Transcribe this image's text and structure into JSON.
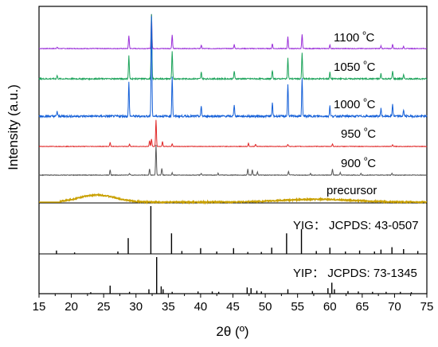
{
  "chart_data": {
    "type": "line",
    "title": "",
    "xlabel": "2θ (º)",
    "ylabel": "Intensity (a.u.)",
    "xlim": [
      15,
      75
    ],
    "xticks": [
      "15",
      "20",
      "25",
      "30",
      "35",
      "40",
      "45",
      "50",
      "55",
      "60",
      "65",
      "70",
      "75"
    ],
    "grid": false,
    "series": [
      {
        "name": "1100 ºC",
        "color": "#9b30d9",
        "peaks": [
          [
            17.8,
            0.05
          ],
          [
            28.9,
            0.38
          ],
          [
            32.4,
            1.0
          ],
          [
            35.6,
            0.4
          ],
          [
            40.1,
            0.1
          ],
          [
            45.2,
            0.12
          ],
          [
            51.1,
            0.14
          ],
          [
            53.5,
            0.34
          ],
          [
            55.7,
            0.42
          ],
          [
            60.0,
            0.1
          ],
          [
            67.9,
            0.08
          ],
          [
            69.7,
            0.12
          ],
          [
            71.4,
            0.06
          ]
        ]
      },
      {
        "name": "1050 ºC",
        "color": "#1ca35a",
        "peaks": [
          [
            17.8,
            0.05
          ],
          [
            28.9,
            0.36
          ],
          [
            32.4,
            1.0
          ],
          [
            35.6,
            0.42
          ],
          [
            40.1,
            0.1
          ],
          [
            45.2,
            0.12
          ],
          [
            51.1,
            0.13
          ],
          [
            53.5,
            0.32
          ],
          [
            55.7,
            0.4
          ],
          [
            60.0,
            0.1
          ],
          [
            67.9,
            0.08
          ],
          [
            69.7,
            0.12
          ],
          [
            71.4,
            0.06
          ]
        ]
      },
      {
        "name": "1000 ºC",
        "color": "#1560d8",
        "peaks": [
          [
            17.8,
            0.05
          ],
          [
            28.9,
            0.34
          ],
          [
            32.4,
            1.0
          ],
          [
            35.6,
            0.4
          ],
          [
            40.1,
            0.1
          ],
          [
            45.2,
            0.12
          ],
          [
            51.1,
            0.13
          ],
          [
            53.5,
            0.32
          ],
          [
            55.7,
            0.38
          ],
          [
            60.0,
            0.1
          ],
          [
            67.9,
            0.08
          ],
          [
            69.7,
            0.12
          ],
          [
            71.4,
            0.06
          ]
        ]
      },
      {
        "name": "950 ºC",
        "color": "#e02828",
        "peaks": [
          [
            26.0,
            0.15
          ],
          [
            29.0,
            0.08
          ],
          [
            32.1,
            0.22
          ],
          [
            32.4,
            0.28
          ],
          [
            33.1,
            1.0
          ],
          [
            34.1,
            0.18
          ],
          [
            35.6,
            0.1
          ],
          [
            47.4,
            0.12
          ],
          [
            48.5,
            0.08
          ],
          [
            53.5,
            0.08
          ],
          [
            60.4,
            0.1
          ],
          [
            69.7,
            0.06
          ]
        ]
      },
      {
        "name": "900 ºC",
        "color": "#555555",
        "peaks": [
          [
            26.0,
            0.18
          ],
          [
            29.0,
            0.06
          ],
          [
            32.1,
            0.2
          ],
          [
            33.1,
            1.0
          ],
          [
            34.0,
            0.22
          ],
          [
            35.6,
            0.08
          ],
          [
            40.1,
            0.05
          ],
          [
            42.7,
            0.06
          ],
          [
            47.3,
            0.2
          ],
          [
            48.0,
            0.18
          ],
          [
            48.8,
            0.1
          ],
          [
            53.6,
            0.12
          ],
          [
            57.0,
            0.06
          ],
          [
            60.4,
            0.2
          ],
          [
            61.6,
            0.08
          ],
          [
            64.8,
            0.06
          ],
          [
            69.6,
            0.06
          ]
        ]
      },
      {
        "name": "precursor",
        "color": "#c9a000",
        "type": "amorphous",
        "humps": [
          [
            24.0,
            4.0,
            0.9
          ],
          [
            58.0,
            8.0,
            0.35
          ]
        ]
      }
    ],
    "reference_patterns": [
      {
        "name": "YIG",
        "label": "YIG： JCPDS: 43-0507",
        "sticks": [
          [
            17.7,
            0.07
          ],
          [
            20.5,
            0.03
          ],
          [
            27.2,
            0.05
          ],
          [
            28.8,
            0.33
          ],
          [
            32.3,
            1.0
          ],
          [
            35.5,
            0.43
          ],
          [
            37.1,
            0.06
          ],
          [
            40.0,
            0.12
          ],
          [
            42.5,
            0.05
          ],
          [
            45.1,
            0.12
          ],
          [
            47.3,
            0.04
          ],
          [
            49.4,
            0.04
          ],
          [
            51.0,
            0.13
          ],
          [
            53.3,
            0.43
          ],
          [
            55.6,
            0.52
          ],
          [
            57.9,
            0.06
          ],
          [
            60.0,
            0.13
          ],
          [
            62.4,
            0.05
          ],
          [
            64.6,
            0.07
          ],
          [
            66.9,
            0.05
          ],
          [
            67.9,
            0.09
          ],
          [
            69.6,
            0.14
          ],
          [
            71.4,
            0.1
          ],
          [
            73.6,
            0.06
          ]
        ]
      },
      {
        "name": "YIP",
        "label": "YIP： JCPDS: 73-1345",
        "sticks": [
          [
            23.0,
            0.04
          ],
          [
            26.0,
            0.22
          ],
          [
            29.0,
            0.05
          ],
          [
            32.0,
            0.12
          ],
          [
            33.2,
            1.0
          ],
          [
            33.9,
            0.2
          ],
          [
            34.2,
            0.12
          ],
          [
            35.6,
            0.05
          ],
          [
            39.6,
            0.06
          ],
          [
            41.8,
            0.06
          ],
          [
            42.8,
            0.05
          ],
          [
            47.2,
            0.17
          ],
          [
            47.8,
            0.15
          ],
          [
            48.7,
            0.08
          ],
          [
            49.4,
            0.06
          ],
          [
            53.5,
            0.12
          ],
          [
            57.3,
            0.07
          ],
          [
            59.7,
            0.15
          ],
          [
            60.3,
            0.3
          ],
          [
            60.7,
            0.12
          ],
          [
            62.8,
            0.07
          ],
          [
            64.4,
            0.06
          ],
          [
            66.6,
            0.05
          ],
          [
            68.7,
            0.05
          ],
          [
            70.9,
            0.05
          ],
          [
            72.6,
            0.04
          ]
        ]
      }
    ]
  }
}
